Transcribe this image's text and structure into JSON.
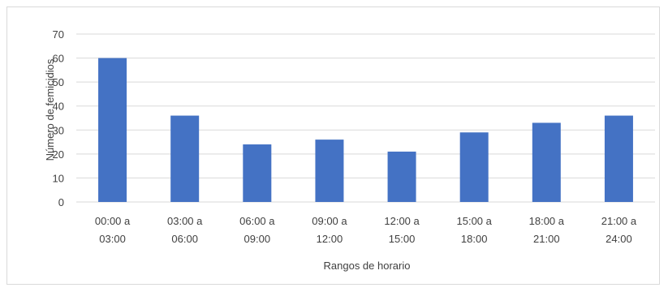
{
  "chart_data": {
    "type": "bar",
    "title": "",
    "xlabel": "Rangos de horario",
    "ylabel": "Número de femicidios",
    "ylim": [
      0,
      70
    ],
    "yticks": [
      0,
      10,
      20,
      30,
      40,
      50,
      60,
      70
    ],
    "grid": true,
    "legend": "none",
    "bar_color": "#4472c4",
    "grid_color": "#d9d9d9",
    "categories": [
      [
        "00:00 a",
        "03:00"
      ],
      [
        "03:00 a",
        "06:00"
      ],
      [
        "06:00 a",
        "09:00"
      ],
      [
        "09:00 a",
        "12:00"
      ],
      [
        "12:00 a",
        "15:00"
      ],
      [
        "15:00 a",
        "18:00"
      ],
      [
        "18:00 a",
        "21:00"
      ],
      [
        "21:00 a",
        "24:00"
      ]
    ],
    "values": [
      60,
      36,
      24,
      26,
      21,
      29,
      33,
      36
    ]
  }
}
